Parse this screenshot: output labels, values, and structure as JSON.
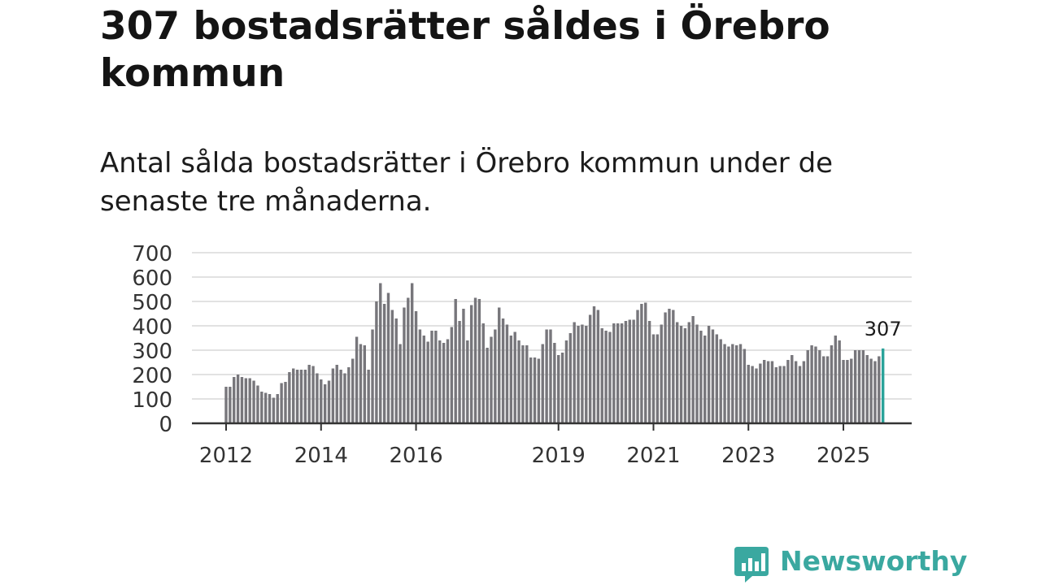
{
  "title": "307 bostadsrätter såldes i Örebro kommun",
  "subtitle": "Antal sålda bostadsrätter i Örebro kommun under de senaste tre månaderna.",
  "logo": {
    "text": "Newsworthy",
    "icon": "newsworthy-chart-bubble-icon"
  },
  "colors": {
    "bar": "#77767b",
    "highlight": "#2aa39a",
    "grid": "#d8d8d8",
    "axis": "#333333",
    "brand": "#3aa8a0"
  },
  "chart_data": {
    "type": "bar",
    "title": "",
    "xlabel": "",
    "ylabel": "",
    "ylim": [
      0,
      700
    ],
    "yticks": [
      "0",
      "100",
      "200",
      "300",
      "400",
      "500",
      "600",
      "700"
    ],
    "xticks": [
      "2012",
      "2014",
      "2016",
      "2019",
      "2021",
      "2023",
      "2025"
    ],
    "grid": true,
    "legend": "none",
    "annotation": {
      "text": "307",
      "target": "last"
    },
    "start_month": "2012-01",
    "end_month": "2025-09",
    "values": [
      150,
      150,
      190,
      200,
      190,
      185,
      185,
      175,
      155,
      130,
      125,
      120,
      105,
      120,
      165,
      170,
      210,
      225,
      220,
      220,
      220,
      240,
      235,
      205,
      180,
      160,
      175,
      225,
      240,
      220,
      205,
      230,
      265,
      355,
      325,
      320,
      220,
      385,
      500,
      575,
      490,
      535,
      465,
      430,
      325,
      475,
      515,
      575,
      460,
      385,
      360,
      335,
      380,
      380,
      340,
      330,
      345,
      395,
      510,
      420,
      470,
      340,
      485,
      515,
      510,
      410,
      310,
      355,
      385,
      475,
      430,
      405,
      360,
      375,
      340,
      320,
      320,
      270,
      270,
      265,
      325,
      385,
      385,
      330,
      280,
      290,
      340,
      370,
      415,
      400,
      405,
      400,
      445,
      480,
      465,
      390,
      380,
      375,
      410,
      410,
      410,
      420,
      425,
      425,
      465,
      490,
      495,
      420,
      365,
      365,
      405,
      455,
      470,
      465,
      415,
      400,
      390,
      415,
      440,
      405,
      380,
      360,
      400,
      385,
      365,
      345,
      325,
      315,
      325,
      320,
      325,
      305,
      240,
      235,
      225,
      245,
      260,
      255,
      255,
      230,
      235,
      235,
      260,
      280,
      255,
      235,
      255,
      300,
      320,
      315,
      300,
      275,
      275,
      320,
      360,
      340,
      260,
      260,
      265,
      300,
      300,
      300,
      280,
      265,
      255,
      275,
      307
    ]
  }
}
